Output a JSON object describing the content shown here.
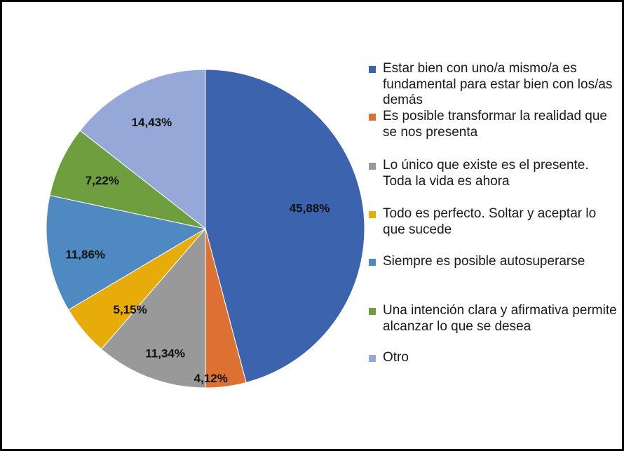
{
  "chart_data": {
    "type": "pie",
    "title": "",
    "legend_position": "right",
    "slices": [
      {
        "label": "Estar bien con uno/a mismo/a es fundamental para estar bien con los/as demás",
        "value": 45.88,
        "display": "45,88%",
        "color": "#3c63ae"
      },
      {
        "label": "Es posible transformar la realidad que se nos presenta",
        "value": 4.12,
        "display": "4,12%",
        "color": "#dd7133"
      },
      {
        "label": "Lo único que existe es el presente. Toda la vida es ahora",
        "value": 11.34,
        "display": "11,34%",
        "color": "#999999"
      },
      {
        "label": "Todo es perfecto. Soltar y aceptar lo que sucede",
        "value": 5.15,
        "display": "5,15%",
        "color": "#e8ac0a"
      },
      {
        "label": "Siempre es posible autosuperarse",
        "value": 11.86,
        "display": "11,86%",
        "color": "#4f89c2"
      },
      {
        "label": "Una intención clara y afirmativa permite alcanzar lo que se desea",
        "value": 7.22,
        "display": "7,22%",
        "color": "#6f9e3e"
      },
      {
        "label": "Otro",
        "value": 14.43,
        "display": "14,43%",
        "color": "#95a8d8"
      }
    ]
  }
}
